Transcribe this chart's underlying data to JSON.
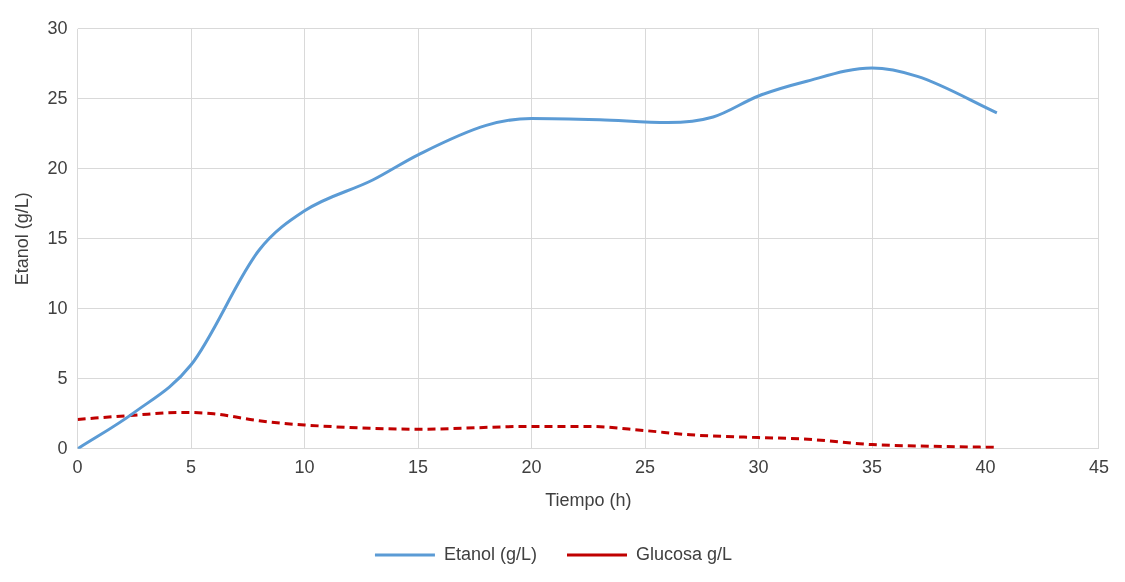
{
  "chart_data": {
    "type": "line",
    "xlabel": "Tiempo (h)",
    "ylabel": "Etanol (g/L)",
    "xlim": [
      0,
      45
    ],
    "xticks": [
      0,
      5,
      10,
      15,
      20,
      25,
      30,
      35,
      40,
      45
    ],
    "ylim": [
      0,
      30
    ],
    "yticks": [
      0,
      5,
      10,
      15,
      20,
      25,
      30
    ],
    "grid": true,
    "legend": "bottom",
    "marker": "none",
    "series": [
      {
        "name": "Etanol (g/L)",
        "color": "#5b9bd5",
        "line_style": "solid",
        "x": [
          0,
          2.5,
          5,
          8,
          10,
          13,
          15,
          18,
          20,
          23,
          26,
          28,
          30,
          32,
          35,
          37,
          40.5
        ],
        "values": [
          0,
          2.6,
          6,
          14.2,
          17,
          19.2,
          21,
          23.1,
          23.6,
          23.5,
          23.3,
          23.7,
          25.2,
          26.2,
          27.2,
          26.6,
          24
        ]
      },
      {
        "name": "Glucosa g/L",
        "color": "#c00000",
        "line_style": "dashed",
        "x": [
          0,
          2.5,
          4.5,
          6,
          8,
          10,
          15,
          20,
          22.5,
          25,
          27,
          30,
          32,
          35,
          37,
          40.5
        ],
        "values": [
          2.1,
          2.4,
          2.6,
          2.5,
          2,
          1.7,
          1.4,
          1.6,
          1.6,
          1.3,
          1,
          0.8,
          0.7,
          0.3,
          0.2,
          0.1
        ]
      }
    ]
  }
}
